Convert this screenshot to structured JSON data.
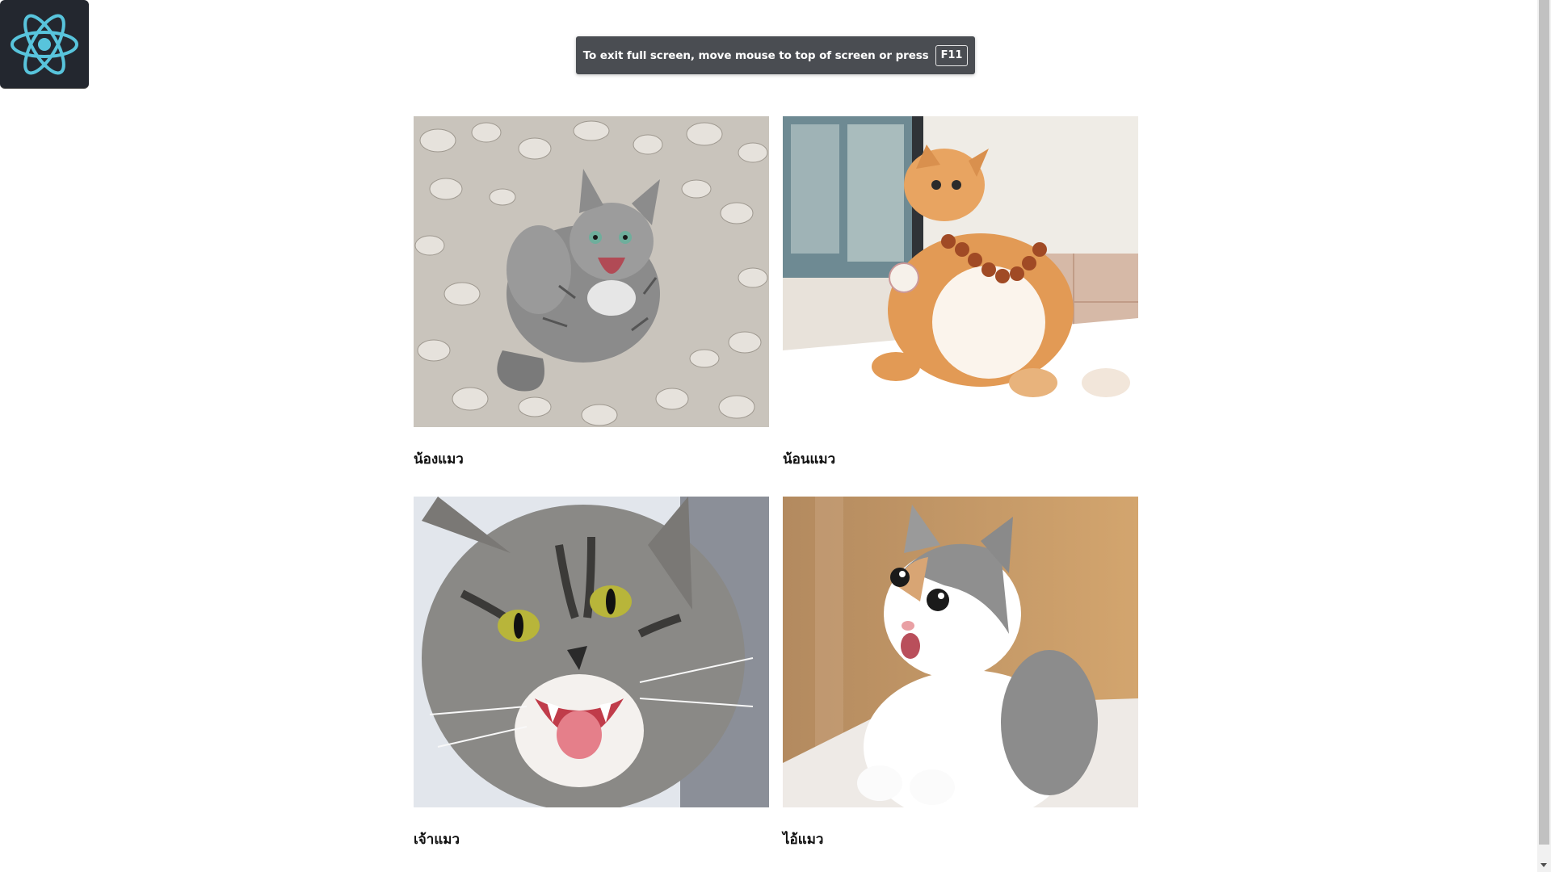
{
  "app": {
    "logo_icon": "react-logo-icon",
    "logo_color": "#58c4dc",
    "logo_bg": "#23272f"
  },
  "fullscreen_toast": {
    "message": "To exit full screen, move mouse to top of screen or press",
    "key": "F11"
  },
  "gallery": {
    "cards": [
      {
        "caption": "น้องแมว",
        "image": "gray-tabby-cat-hissing-on-gravel"
      },
      {
        "caption": "น้อนแมว",
        "image": "orange-cat-sitting-with-bead-necklace"
      },
      {
        "caption": "เจ้าแมว",
        "image": "angry-tabby-cat-closeup"
      },
      {
        "caption": "ไอ้แมว",
        "image": "surprised-calico-kitten"
      }
    ]
  },
  "colors": {
    "toast_bg": "#4a4d52",
    "page_bg": "#ffffff",
    "caption_text": "#111111"
  }
}
